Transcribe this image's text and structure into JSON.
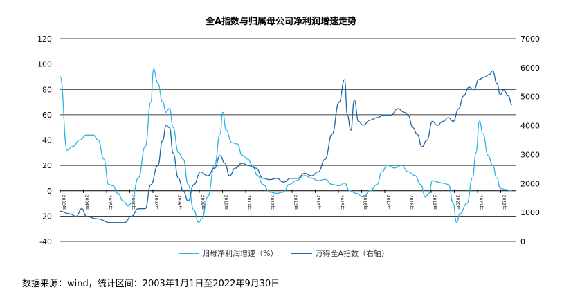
{
  "chart_data": {
    "type": "line",
    "title": "全A指数与归属母公司净利润增速走势",
    "xlabel": "",
    "ylabel": "",
    "xlim": [
      2003,
      2022.5
    ],
    "ylim_left": [
      -40,
      120
    ],
    "ylim_right": [
      0,
      7000
    ],
    "left_ticks": [
      "120",
      "100",
      "80",
      "60",
      "40",
      "20",
      "0",
      "-20",
      "-40"
    ],
    "right_ticks": [
      "7000",
      "6000",
      "5000",
      "4000",
      "3000",
      "2000",
      "1000",
      "0"
    ],
    "x_tick_labels": [
      "2003年",
      "2004年",
      "2005年",
      "2006年",
      "2007年",
      "2008年",
      "2009年",
      "2010年",
      "2011年",
      "2012年",
      "2013年",
      "2014年",
      "2015年",
      "2016年",
      "2017年",
      "2018年",
      "2019年",
      "2020年",
      "2021年",
      "2022年"
    ],
    "grid": true,
    "legend_position": "bottom",
    "colors": {
      "profit": "#2bb5e3",
      "index": "#1c67a8"
    },
    "series": [
      {
        "name": "归母净利润增速（%）",
        "axis": "left",
        "x": [
          2003.0,
          2003.3,
          2003.54,
          2003.84,
          2004.13,
          2004.43,
          2004.64,
          2004.88,
          2005.09,
          2005.27,
          2005.48,
          2005.72,
          2005.93,
          2006.07,
          2006.37,
          2006.67,
          2006.91,
          2007.03,
          2007.21,
          2007.42,
          2007.57,
          2007.72,
          2007.87,
          2008.1,
          2008.31,
          2008.52,
          2008.76,
          2008.97,
          2009.12,
          2009.36,
          2009.66,
          2009.9,
          2010.01,
          2010.16,
          2010.4,
          2010.64,
          2010.85,
          2011.09,
          2011.3,
          2011.51,
          2011.75,
          2012.04,
          2012.34,
          2012.64,
          2012.88,
          2013.18,
          2013.54,
          2013.84,
          2014.13,
          2014.43,
          2014.73,
          2015.03,
          2015.27,
          2015.48,
          2015.78,
          2016.07,
          2016.37,
          2016.67,
          2016.88,
          2017.12,
          2017.42,
          2017.72,
          2018.01,
          2018.31,
          2018.55,
          2018.76,
          2018.91,
          2019.06,
          2019.27,
          2019.51,
          2019.75,
          2019.96,
          2020.1,
          2020.25,
          2020.55,
          2020.79,
          2020.94,
          2021.09,
          2021.24,
          2021.46,
          2021.66,
          2021.84,
          2021.99,
          2022.19,
          2022.49
        ],
        "values": [
          90,
          32,
          35,
          40,
          44,
          44,
          40,
          25,
          5,
          4,
          -2,
          -8,
          -12,
          -10,
          10,
          35,
          70,
          96,
          85,
          70,
          62,
          65,
          50,
          30,
          25,
          5,
          -15,
          -25,
          -22,
          -5,
          20,
          45,
          62,
          48,
          38,
          37,
          28,
          25,
          20,
          12,
          5,
          -1,
          -2,
          -1,
          5,
          8,
          12,
          10,
          8,
          9,
          5,
          4,
          6,
          0,
          -2,
          -5,
          0,
          5,
          15,
          20,
          18,
          20,
          15,
          12,
          5,
          -5,
          -2,
          8,
          7,
          6,
          5,
          -10,
          -25,
          -18,
          -10,
          10,
          30,
          55,
          45,
          28,
          20,
          10,
          2,
          1,
          0
        ]
      },
      {
        "name": "万得全A指数（右轴）",
        "axis": "right",
        "x": [
          2003.0,
          2003.39,
          2003.69,
          2003.93,
          2004.13,
          2004.58,
          2005.18,
          2005.78,
          2006.07,
          2006.37,
          2006.67,
          2006.91,
          2007.21,
          2007.42,
          2007.57,
          2007.72,
          2007.87,
          2008.1,
          2008.31,
          2008.52,
          2008.76,
          2009.06,
          2009.36,
          2009.66,
          2009.9,
          2010.1,
          2010.31,
          2010.55,
          2010.85,
          2011.15,
          2011.45,
          2011.75,
          2012.04,
          2012.34,
          2012.64,
          2012.94,
          2013.24,
          2013.54,
          2013.84,
          2014.13,
          2014.43,
          2014.73,
          2015.03,
          2015.27,
          2015.39,
          2015.54,
          2015.69,
          2015.87,
          2016.07,
          2016.37,
          2016.67,
          2016.97,
          2017.27,
          2017.57,
          2017.87,
          2018.01,
          2018.22,
          2018.4,
          2018.61,
          2018.82,
          2019.06,
          2019.27,
          2019.51,
          2019.75,
          2019.96,
          2020.19,
          2020.4,
          2020.64,
          2020.85,
          2021.06,
          2021.3,
          2021.51,
          2021.66,
          2021.84,
          2021.99,
          2022.13,
          2022.34,
          2022.49
        ],
        "values": [
          1043,
          955,
          868,
          1130,
          868,
          781,
          650,
          650,
          868,
          1130,
          1130,
          1961,
          2616,
          3490,
          4014,
          3927,
          3053,
          2179,
          1742,
          1392,
          1961,
          2398,
          2266,
          2529,
          2966,
          2703,
          2266,
          2529,
          2703,
          2616,
          2529,
          2179,
          2135,
          2179,
          2048,
          2179,
          2179,
          2354,
          2266,
          2398,
          2835,
          3709,
          4801,
          5588,
          4364,
          3840,
          4888,
          4146,
          4014,
          4189,
          4277,
          4364,
          4364,
          4583,
          4451,
          4364,
          3927,
          3709,
          3272,
          3490,
          4146,
          4014,
          4146,
          4277,
          4146,
          4583,
          5020,
          5325,
          5238,
          5588,
          5675,
          5762,
          5894,
          5457,
          5063,
          5238,
          5020,
          4714
        ]
      }
    ]
  },
  "source_note": "数据来源：wind，统计区间：2003年1月1日至2022年9月30日"
}
